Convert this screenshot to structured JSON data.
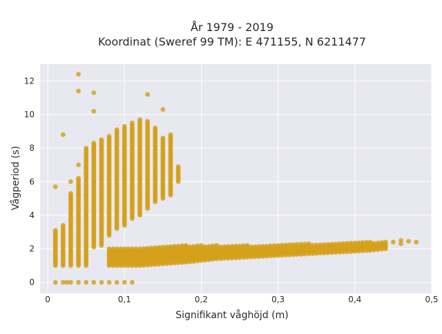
{
  "chart_data": {
    "type": "scatter",
    "title_line1": "År 1979 - 2019",
    "title_line2": "Koordinat (Sweref 99 TM): E 471155, N 6211477",
    "xlabel": "Signifikant våghöjd (m)",
    "ylabel": "Vågperiod (s)",
    "xlim": [
      -0.01,
      0.5
    ],
    "ylim": [
      -0.65,
      13
    ],
    "xticks": [
      0,
      0.1,
      0.2,
      0.3,
      0.4,
      0.5
    ],
    "xtick_labels": [
      "0",
      "0,1",
      "0,2",
      "0,3",
      "0,4",
      "0,5"
    ],
    "yticks": [
      0,
      2,
      4,
      6,
      8,
      10,
      12
    ],
    "ytick_labels": [
      "0",
      "2",
      "4",
      "6",
      "8",
      "10",
      "12"
    ],
    "grid": true,
    "marker_color": "#d4a017",
    "plot_background": "#e8e8f0",
    "vertical_columns": [
      {
        "x": 0.01,
        "y_min": 1.0,
        "y_max": 3.1
      },
      {
        "x": 0.02,
        "y_min": 1.0,
        "y_max": 3.4
      },
      {
        "x": 0.03,
        "y_min": 1.0,
        "y_max": 5.3
      },
      {
        "x": 0.04,
        "y_min": 1.0,
        "y_max": 6.2
      },
      {
        "x": 0.05,
        "y_min": 1.0,
        "y_max": 8.0
      },
      {
        "x": 0.06,
        "y_min": 2.1,
        "y_max": 8.3
      },
      {
        "x": 0.07,
        "y_min": 2.2,
        "y_max": 8.5
      },
      {
        "x": 0.08,
        "y_min": 2.8,
        "y_max": 8.7
      },
      {
        "x": 0.09,
        "y_min": 3.2,
        "y_max": 9.1
      },
      {
        "x": 0.1,
        "y_min": 3.4,
        "y_max": 9.3
      },
      {
        "x": 0.11,
        "y_min": 3.8,
        "y_max": 9.5
      },
      {
        "x": 0.12,
        "y_min": 4.0,
        "y_max": 9.7
      },
      {
        "x": 0.13,
        "y_min": 4.4,
        "y_max": 9.6
      },
      {
        "x": 0.14,
        "y_min": 4.8,
        "y_max": 9.2
      },
      {
        "x": 0.15,
        "y_min": 5.0,
        "y_max": 8.6
      },
      {
        "x": 0.16,
        "y_min": 5.2,
        "y_max": 8.8
      },
      {
        "x": 0.17,
        "y_min": 6.0,
        "y_max": 6.9
      }
    ],
    "low_band": [
      {
        "x": 0.08,
        "y_min": 1.0,
        "y_max": 2.0
      },
      {
        "x": 0.1,
        "y_min": 1.0,
        "y_max": 2.0
      },
      {
        "x": 0.12,
        "y_min": 1.0,
        "y_max": 2.05
      },
      {
        "x": 0.15,
        "y_min": 1.1,
        "y_max": 2.15
      },
      {
        "x": 0.18,
        "y_min": 1.2,
        "y_max": 2.2
      },
      {
        "x": 0.22,
        "y_min": 1.4,
        "y_max": 2.2
      },
      {
        "x": 0.26,
        "y_min": 1.5,
        "y_max": 2.2
      },
      {
        "x": 0.3,
        "y_min": 1.6,
        "y_max": 2.25
      },
      {
        "x": 0.34,
        "y_min": 1.7,
        "y_max": 2.3
      },
      {
        "x": 0.38,
        "y_min": 1.8,
        "y_max": 2.35
      },
      {
        "x": 0.42,
        "y_min": 1.9,
        "y_max": 2.4
      },
      {
        "x": 0.44,
        "y_min": 2.0,
        "y_max": 2.4
      }
    ],
    "points": [
      [
        0.01,
        0
      ],
      [
        0.02,
        0
      ],
      [
        0.025,
        0
      ],
      [
        0.03,
        0
      ],
      [
        0.04,
        0
      ],
      [
        0.05,
        0
      ],
      [
        0.06,
        0
      ],
      [
        0.07,
        0
      ],
      [
        0.08,
        0
      ],
      [
        0.09,
        0
      ],
      [
        0.1,
        0
      ],
      [
        0.11,
        0
      ],
      [
        0.01,
        5.7
      ],
      [
        0.02,
        8.8
      ],
      [
        0.03,
        6.0
      ],
      [
        0.03,
        5.0
      ],
      [
        0.03,
        4.5
      ],
      [
        0.04,
        12.4
      ],
      [
        0.04,
        11.4
      ],
      [
        0.04,
        7.0
      ],
      [
        0.04,
        5.7
      ],
      [
        0.04,
        5.2
      ],
      [
        0.05,
        6.5
      ],
      [
        0.05,
        6.8
      ],
      [
        0.05,
        5.2
      ],
      [
        0.06,
        11.3
      ],
      [
        0.06,
        10.2
      ],
      [
        0.06,
        6.0
      ],
      [
        0.13,
        11.2
      ],
      [
        0.15,
        10.3
      ],
      [
        0.14,
        7.7
      ],
      [
        0.16,
        7.0
      ],
      [
        0.45,
        2.4
      ],
      [
        0.46,
        2.5
      ],
      [
        0.46,
        2.3
      ],
      [
        0.47,
        2.45
      ],
      [
        0.48,
        2.4
      ]
    ]
  }
}
